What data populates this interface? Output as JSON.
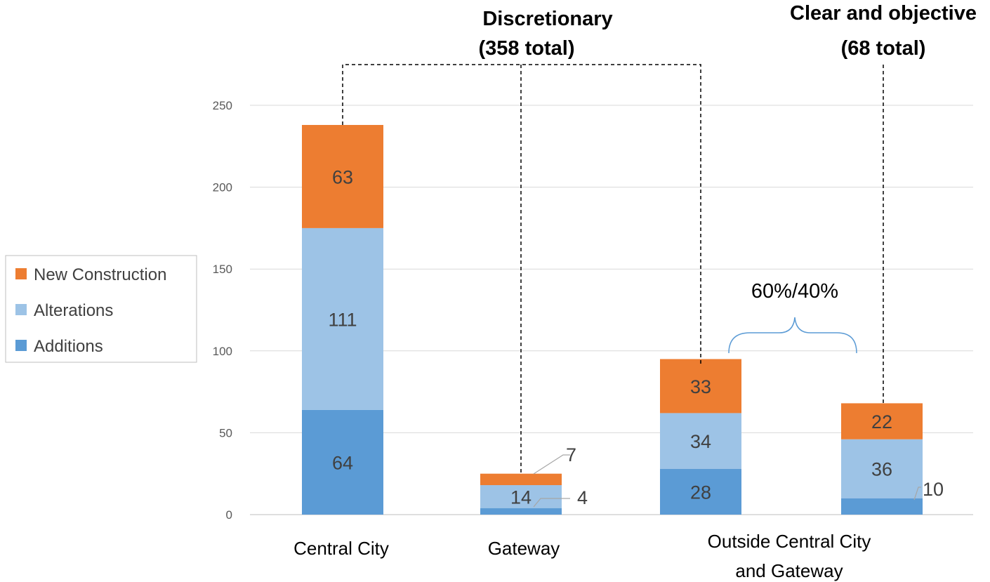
{
  "chart_data": {
    "type": "bar",
    "stacked": true,
    "categories": [
      "Central City",
      "Gateway",
      "",
      ""
    ],
    "category_label_lines": [
      [
        "Central City"
      ],
      [
        "Gateway"
      ],
      [
        "Outside Central City",
        "and Gateway"
      ]
    ],
    "series": [
      {
        "name": "Additions",
        "values": [
          64,
          4,
          28,
          10
        ],
        "color": "#5B9BD5"
      },
      {
        "name": "Alterations",
        "values": [
          111,
          14,
          34,
          36
        ],
        "color": "#9DC3E6"
      },
      {
        "name": "New Construction",
        "values": [
          63,
          7,
          33,
          22
        ],
        "color": "#ED7D31"
      }
    ],
    "ylim": [
      0,
      250
    ],
    "yticks": [
      0,
      50,
      100,
      150,
      200,
      250
    ],
    "grid": true,
    "legend_placement": "left",
    "legend_order": [
      "New Construction",
      "Alterations",
      "Additions"
    ],
    "annotations": {
      "discretionary": [
        "Discretionary",
        "(358 total)"
      ],
      "clear_objective": [
        "Clear and objective",
        "(68 total)"
      ],
      "split": "60%/40%"
    }
  },
  "colors": {
    "gridline": "#D9D9D9",
    "axis": "#BFBFBF",
    "dashed": "#000000",
    "leader": "#A6A6A6",
    "brace": "#5B9BD5"
  }
}
